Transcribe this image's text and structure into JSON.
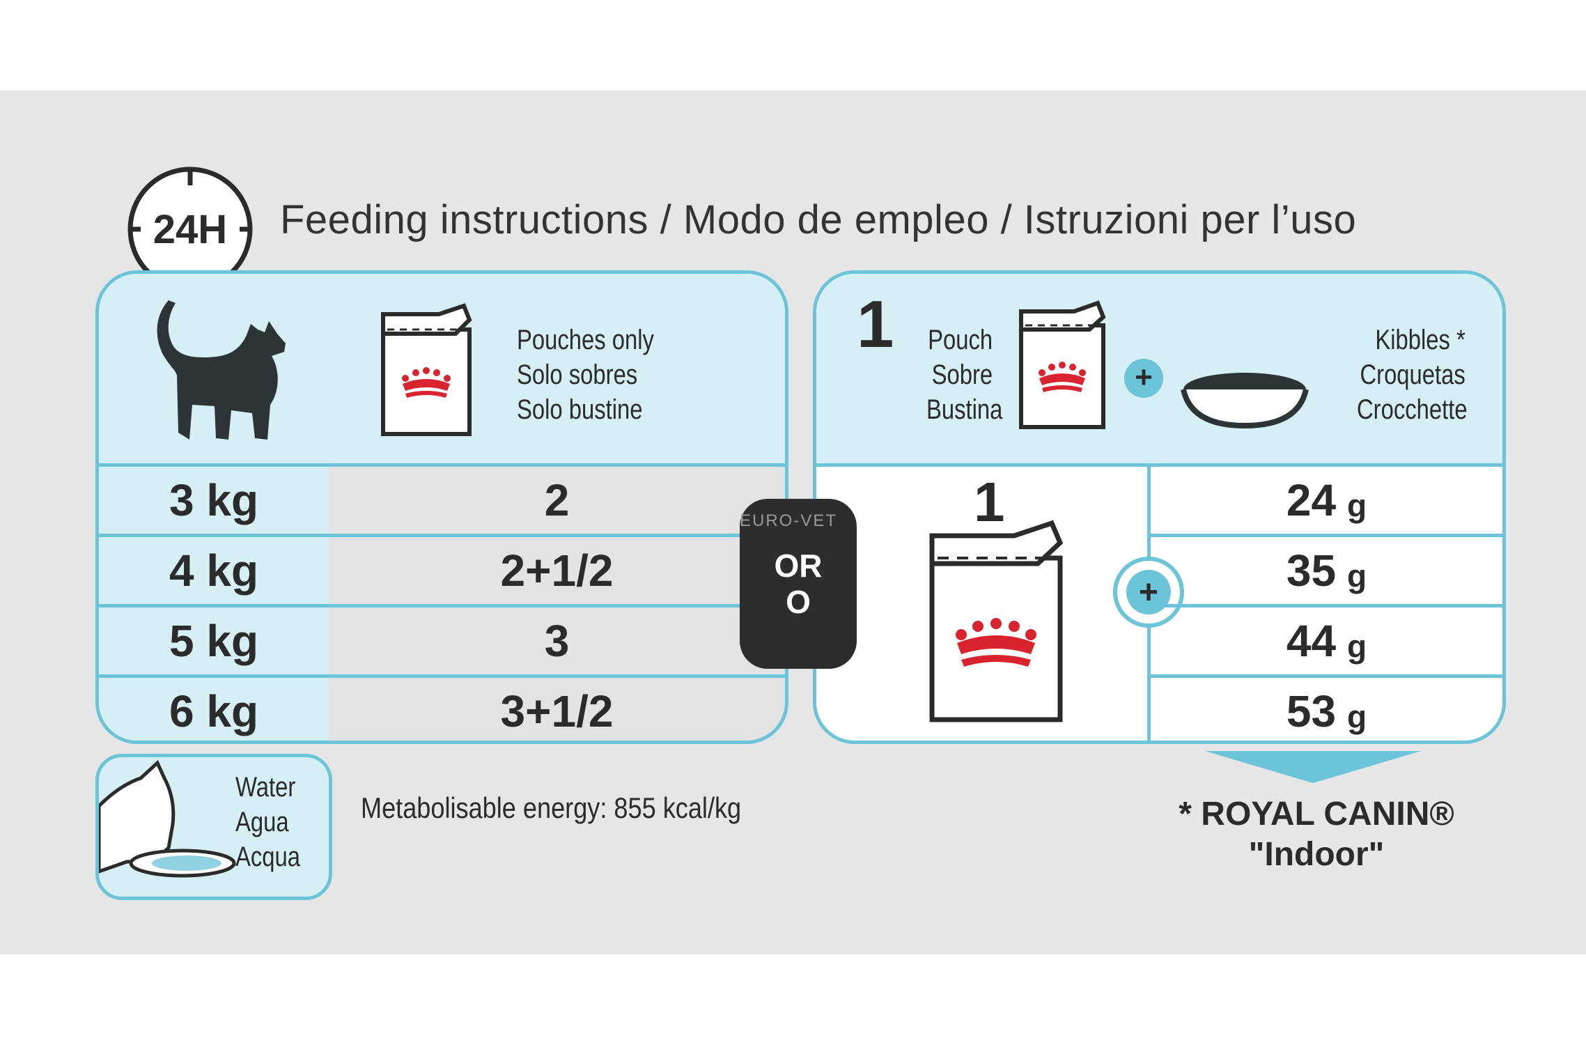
{
  "header": {
    "clock_label": "24H",
    "title": "Feeding instructions / Modo de empleo / Istruzioni per l’uso"
  },
  "left_table": {
    "pouch_label_lines": [
      "Pouches only",
      "Solo sobres",
      "Solo bustine"
    ],
    "rows": [
      {
        "weight": "3 kg",
        "pouches": "2"
      },
      {
        "weight": "4 kg",
        "pouches": "2+1/2"
      },
      {
        "weight": "5 kg",
        "pouches": "3"
      },
      {
        "weight": "6 kg",
        "pouches": "3+1/2"
      }
    ]
  },
  "or_badge": {
    "line1": "OR",
    "line2": "O"
  },
  "watermark": "EURO-VET",
  "right_table": {
    "count": "1",
    "pouch_label_lines": [
      "Pouch",
      "Sobre",
      "Bustina"
    ],
    "plus_symbol": "+",
    "kibbles_label_lines": [
      "Kibbles *",
      "Croquetas",
      "Crocchette"
    ],
    "pouch_count": "1",
    "rows": [
      {
        "value": "24",
        "unit": "g"
      },
      {
        "value": "35",
        "unit": "g"
      },
      {
        "value": "44",
        "unit": "g"
      },
      {
        "value": "53",
        "unit": "g"
      }
    ]
  },
  "water": {
    "lines": [
      "Water",
      "Agua",
      "Acqua"
    ]
  },
  "energy": "Metabolisable energy: 855 kcal/kg",
  "footnote": {
    "line1": "* ROYAL CANIN®",
    "line2": "\"Indoor\""
  },
  "colors": {
    "accent": "#6cc4d8",
    "light_blue": "#d6eff5",
    "crown_red": "#d9232e",
    "dark": "#2d2d2d"
  },
  "icons": [
    "clock-icon",
    "cat-icon",
    "pouch-icon",
    "crown-logo",
    "bowl-icon",
    "plus-icon",
    "water-cat-icon"
  ]
}
